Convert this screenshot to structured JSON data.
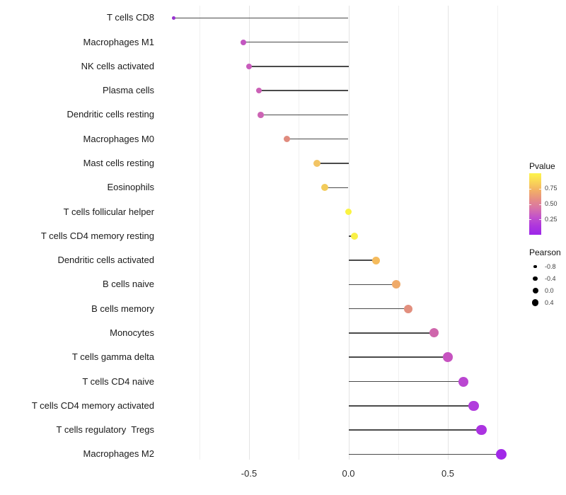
{
  "chart_data": {
    "type": "scatter",
    "variant": "horizontal-lollipop",
    "title": "",
    "xlabel": "",
    "ylabel": "",
    "grid": true,
    "legend_position": "right",
    "stem_color": "#4a4a4a",
    "x_axis": {
      "range": [
        -0.9625,
        0.8525
      ],
      "ticks": [
        {
          "value": -0.5,
          "label": "-0.5"
        },
        {
          "value": 0.0,
          "label": "0.0"
        },
        {
          "value": 0.5,
          "label": "0.5"
        }
      ],
      "gridlines": [
        {
          "value": -0.75,
          "major": false
        },
        {
          "value": -0.5,
          "major": true
        },
        {
          "value": -0.25,
          "major": false
        },
        {
          "value": 0.0,
          "major": true
        },
        {
          "value": 0.25,
          "major": false
        },
        {
          "value": 0.5,
          "major": true
        },
        {
          "value": 0.75,
          "major": false
        }
      ]
    },
    "rows": [
      {
        "label": "T cells CD8",
        "pearson": -0.88,
        "color": "#9733cf",
        "radius": 2.4
      },
      {
        "label": "Macrophages M1",
        "pearson": -0.53,
        "color": "#c356c1",
        "radius": 4.0
      },
      {
        "label": "NK cells activated",
        "pearson": -0.5,
        "color": "#c95bbc",
        "radius": 4.2
      },
      {
        "label": "Plasma cells",
        "pearson": -0.45,
        "color": "#cb61b6",
        "radius": 4.4
      },
      {
        "label": "Dendritic cells resting",
        "pearson": -0.44,
        "color": "#cc64b4",
        "radius": 4.4
      },
      {
        "label": "Macrophages M0",
        "pearson": -0.31,
        "color": "#e08b7e",
        "radius": 4.8
      },
      {
        "label": "Mast cells resting",
        "pearson": -0.16,
        "color": "#f2c464",
        "radius": 5.0
      },
      {
        "label": "Eosinophils",
        "pearson": -0.12,
        "color": "#f2cb5a",
        "radius": 5.0
      },
      {
        "label": "T cells follicular helper",
        "pearson": 0.0,
        "color": "#faf342",
        "radius": 4.8
      },
      {
        "label": "T cells CD4 memory resting",
        "pearson": 0.03,
        "color": "#f9f046",
        "radius": 5.1
      },
      {
        "label": "Dendritic cells activated",
        "pearson": 0.14,
        "color": "#f5bb5c",
        "radius": 5.6
      },
      {
        "label": "B cells naive",
        "pearson": 0.24,
        "color": "#efaa69",
        "radius": 6.0
      },
      {
        "label": "B cells memory",
        "pearson": 0.3,
        "color": "#e28f7e",
        "radius": 6.2
      },
      {
        "label": "Monocytes",
        "pearson": 0.43,
        "color": "#cf66ac",
        "radius": 6.6
      },
      {
        "label": "T cells gamma delta",
        "pearson": 0.5,
        "color": "#c653c0",
        "radius": 6.8
      },
      {
        "label": "T cells CD4 naive",
        "pearson": 0.58,
        "color": "#ba46d1",
        "radius": 7.0
      },
      {
        "label": "T cells CD4 memory activated",
        "pearson": 0.63,
        "color": "#b13cdd",
        "radius": 7.2
      },
      {
        "label": "T cells regulatory  Tregs",
        "pearson": 0.67,
        "color": "#ab33e1",
        "radius": 7.3
      },
      {
        "label": "Macrophages M2",
        "pearson": 0.77,
        "color": "#a129e8",
        "radius": 7.6
      }
    ],
    "legend": {
      "pvalue": {
        "title": "Pvalue",
        "ticks": [
          {
            "value": 0.75,
            "label": "0.75"
          },
          {
            "value": 0.5,
            "label": "0.50"
          },
          {
            "value": 0.25,
            "label": "0.25"
          }
        ],
        "gradient": [
          "#fdf44b",
          "#f9d457",
          "#f2ae67",
          "#e68d85",
          "#d873a8",
          "#c252cb",
          "#ae36dd",
          "#9d26e9"
        ]
      },
      "pearson": {
        "title": "Pearson",
        "items": [
          {
            "label": "-0.8",
            "diameter": 4.5
          },
          {
            "label": "-0.4",
            "diameter": 6.5
          },
          {
            "label": "0.0",
            "diameter": 8.0
          },
          {
            "label": "0.4",
            "diameter": 9.5
          }
        ]
      }
    }
  }
}
